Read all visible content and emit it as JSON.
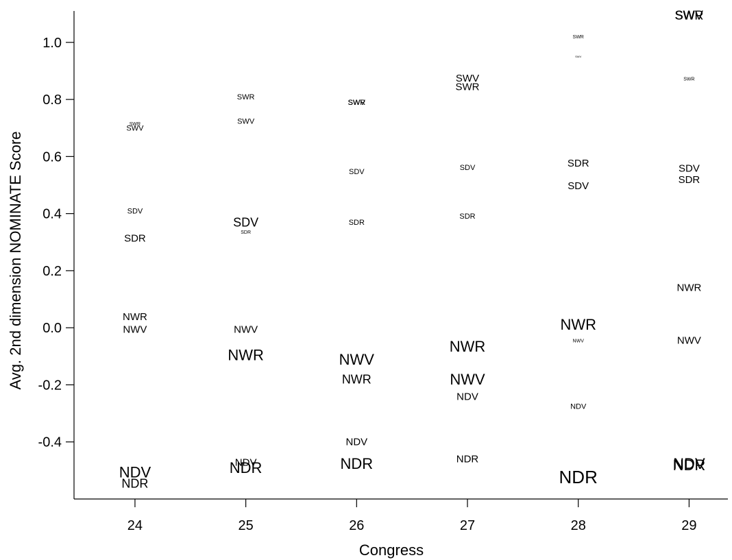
{
  "chart_data": {
    "type": "scatter",
    "title": "",
    "xlabel": "Congress",
    "ylabel": "Avg. 2nd dimension NOMINATE Score",
    "x_ticks": [
      "24",
      "25",
      "26",
      "27",
      "28",
      "29"
    ],
    "y_ticks": [
      "-0.4",
      "-0.2",
      "0.0",
      "0.2",
      "0.4",
      "0.6",
      "0.8",
      "1.0"
    ],
    "y_tick_values": [
      -0.4,
      -0.2,
      0.0,
      0.2,
      0.4,
      0.6,
      0.8,
      1.0
    ],
    "xlim": [
      23.45,
      29.35
    ],
    "ylim": [
      -0.6,
      1.11
    ],
    "grid": false,
    "legend": "none",
    "note_on_labels": "Each point is drawn as its group code text; size indicates relative group size.",
    "points": [
      {
        "label": "SWR",
        "x": 24,
        "y": 0.715,
        "size": "xs"
      },
      {
        "label": "SWV",
        "x": 24,
        "y": 0.7,
        "size": "s"
      },
      {
        "label": "SDV",
        "x": 24,
        "y": 0.41,
        "size": "s"
      },
      {
        "label": "SDR",
        "x": 24,
        "y": 0.315,
        "size": "m"
      },
      {
        "label": "NWR",
        "x": 24,
        "y": 0.04,
        "size": "m"
      },
      {
        "label": "NWV",
        "x": 24,
        "y": -0.005,
        "size": "m"
      },
      {
        "label": "NDV",
        "x": 24,
        "y": -0.505,
        "size": "xl"
      },
      {
        "label": "NDR",
        "x": 24,
        "y": -0.545,
        "size": "l"
      },
      {
        "label": "SWR",
        "x": 25,
        "y": 0.81,
        "size": "s"
      },
      {
        "label": "SWV",
        "x": 25,
        "y": 0.725,
        "size": "s"
      },
      {
        "label": "SDV",
        "x": 25,
        "y": 0.37,
        "size": "l"
      },
      {
        "label": "SDR",
        "x": 25,
        "y": 0.335,
        "size": "xs"
      },
      {
        "label": "NWV",
        "x": 25,
        "y": -0.005,
        "size": "m"
      },
      {
        "label": "NWR",
        "x": 25,
        "y": -0.095,
        "size": "xl"
      },
      {
        "label": "NDV",
        "x": 25,
        "y": -0.47,
        "size": "m"
      },
      {
        "label": "NDR",
        "x": 25,
        "y": -0.49,
        "size": "xl"
      },
      {
        "label": "SWV",
        "x": 26,
        "y": 0.79,
        "size": "s"
      },
      {
        "label": "SWR",
        "x": 26,
        "y": 0.79,
        "size": "s"
      },
      {
        "label": "SDV",
        "x": 26,
        "y": 0.548,
        "size": "s"
      },
      {
        "label": "SDR",
        "x": 26,
        "y": 0.37,
        "size": "s"
      },
      {
        "label": "NWV",
        "x": 26,
        "y": -0.11,
        "size": "xl"
      },
      {
        "label": "NWR",
        "x": 26,
        "y": -0.18,
        "size": "l"
      },
      {
        "label": "NDV",
        "x": 26,
        "y": -0.398,
        "size": "m"
      },
      {
        "label": "NDR",
        "x": 26,
        "y": -0.475,
        "size": "xl"
      },
      {
        "label": "SWV",
        "x": 27,
        "y": 0.875,
        "size": "m"
      },
      {
        "label": "SWR",
        "x": 27,
        "y": 0.845,
        "size": "m"
      },
      {
        "label": "SDV",
        "x": 27,
        "y": 0.562,
        "size": "s"
      },
      {
        "label": "SDR",
        "x": 27,
        "y": 0.392,
        "size": "s"
      },
      {
        "label": "NWR",
        "x": 27,
        "y": -0.065,
        "size": "xl"
      },
      {
        "label": "NWV",
        "x": 27,
        "y": -0.18,
        "size": "xl"
      },
      {
        "label": "NDV",
        "x": 27,
        "y": -0.24,
        "size": "m"
      },
      {
        "label": "NDR",
        "x": 27,
        "y": -0.458,
        "size": "m"
      },
      {
        "label": "SWR",
        "x": 28,
        "y": 1.02,
        "size": "xs"
      },
      {
        "label": "SWV",
        "x": 28,
        "y": 0.95,
        "size": "xxs"
      },
      {
        "label": "SDR",
        "x": 28,
        "y": 0.578,
        "size": "m"
      },
      {
        "label": "SDV",
        "x": 28,
        "y": 0.498,
        "size": "m"
      },
      {
        "label": "NWR",
        "x": 28,
        "y": 0.012,
        "size": "xl"
      },
      {
        "label": "NWV",
        "x": 28,
        "y": -0.045,
        "size": "xs"
      },
      {
        "label": "NDV",
        "x": 28,
        "y": -0.275,
        "size": "s"
      },
      {
        "label": "NDR",
        "x": 28,
        "y": -0.522,
        "size": "xxl"
      },
      {
        "label": "SWR",
        "x": 29,
        "y": 1.095,
        "size": "l"
      },
      {
        "label": "SWV",
        "x": 29,
        "y": 1.095,
        "size": "l"
      },
      {
        "label": "SWR",
        "x": 29,
        "y": 0.872,
        "size": "xs"
      },
      {
        "label": "SDV",
        "x": 29,
        "y": 0.56,
        "size": "m"
      },
      {
        "label": "SDR",
        "x": 29,
        "y": 0.52,
        "size": "m"
      },
      {
        "label": "NWR",
        "x": 29,
        "y": 0.142,
        "size": "m"
      },
      {
        "label": "NWV",
        "x": 29,
        "y": -0.043,
        "size": "m"
      },
      {
        "label": "NDV",
        "x": 29,
        "y": -0.475,
        "size": "xl"
      },
      {
        "label": "NDR",
        "x": 29,
        "y": -0.48,
        "size": "xl"
      }
    ]
  }
}
